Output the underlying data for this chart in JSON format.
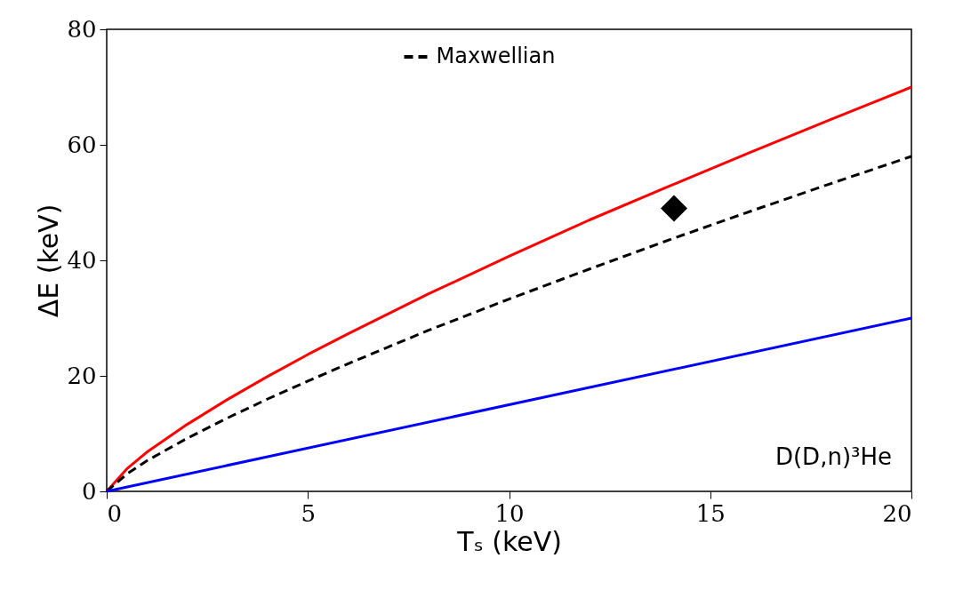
{
  "chart_data": {
    "type": "line",
    "xlabel": "Tₛ (keV)",
    "ylabel": "ΔE  (keV)",
    "xlim": [
      0,
      20
    ],
    "ylim": [
      0,
      80
    ],
    "xticks": [
      0,
      5,
      10,
      15,
      20
    ],
    "yticks": [
      0,
      20,
      40,
      60,
      80
    ],
    "grid": false,
    "legend": "top",
    "line_style": "solid",
    "marker": "none",
    "annotations": [
      "D(D,n)³He"
    ],
    "series": [
      {
        "color": "#ff0000",
        "x": [
          0,
          0.5,
          1,
          2,
          3,
          4,
          5,
          6,
          8,
          10,
          12,
          14,
          16,
          18,
          20
        ],
        "values": [
          0,
          3.9,
          6.8,
          11.6,
          15.9,
          19.9,
          23.7,
          27.3,
          34.2,
          40.7,
          47.0,
          52.9,
          58.7,
          64.4,
          70
        ]
      },
      {
        "name": "Maxwellian",
        "color": "#000000",
        "line_style": "dashed",
        "x": [
          0,
          0.5,
          1,
          2,
          3,
          4,
          5,
          6,
          8,
          10,
          12,
          14,
          16,
          18,
          20
        ],
        "values": [
          0,
          3.0,
          5.3,
          9.2,
          12.7,
          16.0,
          19.1,
          22.1,
          27.9,
          33.3,
          38.5,
          43.6,
          48.5,
          53.3,
          58
        ]
      },
      {
        "color": "#0000ff",
        "x": [
          0,
          20
        ],
        "values": [
          0,
          30
        ]
      },
      {
        "type": "scatter",
        "marker": "diamond",
        "color": "#000000",
        "x": [
          14.1
        ],
        "values": [
          49
        ]
      }
    ]
  }
}
